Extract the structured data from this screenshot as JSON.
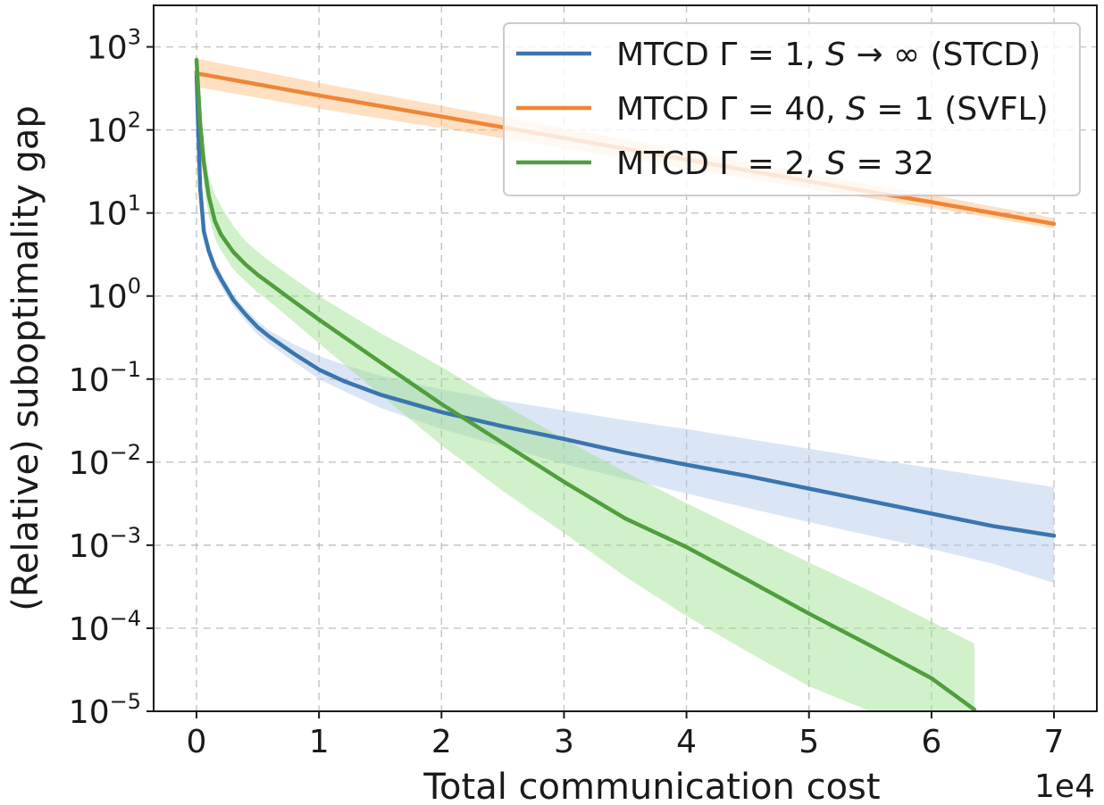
{
  "chart_data": {
    "type": "line",
    "title": "",
    "xlabel": "Total communication cost",
    "ylabel": "(Relative) suboptimality gap",
    "x_offset_label": "1e4",
    "x_scale_factor": 10000,
    "xlim": [
      -0.35,
      7.35
    ],
    "ylim_log10": [
      -5,
      3.5
    ],
    "yscale": "log",
    "grid": true,
    "legend_position": "upper right",
    "x_ticks": [
      {
        "value": 0,
        "label": "0"
      },
      {
        "value": 1,
        "label": "1"
      },
      {
        "value": 2,
        "label": "2"
      },
      {
        "value": 3,
        "label": "3"
      },
      {
        "value": 4,
        "label": "4"
      },
      {
        "value": 5,
        "label": "5"
      },
      {
        "value": 6,
        "label": "6"
      },
      {
        "value": 7,
        "label": "7"
      }
    ],
    "y_ticks": [
      {
        "exp": 3,
        "base": "10",
        "sup": "3"
      },
      {
        "exp": 2,
        "base": "10",
        "sup": "2"
      },
      {
        "exp": 1,
        "base": "10",
        "sup": "1"
      },
      {
        "exp": 0,
        "base": "10",
        "sup": "0"
      },
      {
        "exp": -1,
        "base": "10",
        "sup": "−1"
      },
      {
        "exp": -2,
        "base": "10",
        "sup": "−2"
      },
      {
        "exp": -3,
        "base": "10",
        "sup": "−3"
      },
      {
        "exp": -4,
        "base": "10",
        "sup": "−4"
      },
      {
        "exp": -5,
        "base": "10",
        "sup": "−5"
      }
    ],
    "series": [
      {
        "name": "MTCD Γ = 1, S → ∞ (STCD)",
        "legend_parts": [
          {
            "text": "MTCD Γ = 1, ",
            "italic": false
          },
          {
            "text": "S",
            "italic": true
          },
          {
            "text": " → ∞ (STCD)",
            "italic": false
          }
        ],
        "color": "#3b75af",
        "band_color": "#aec7e8",
        "x": [
          0,
          0.03,
          0.06,
          0.1,
          0.15,
          0.2,
          0.3,
          0.4,
          0.5,
          0.6,
          0.8,
          1.0,
          1.2,
          1.5,
          2.0,
          2.5,
          3.0,
          3.5,
          4.0,
          4.5,
          5.0,
          5.5,
          6.0,
          6.5,
          7.0
        ],
        "y": [
          500,
          20,
          6,
          3.5,
          2.2,
          1.6,
          0.9,
          0.6,
          0.42,
          0.32,
          0.2,
          0.13,
          0.095,
          0.065,
          0.04,
          0.027,
          0.019,
          0.013,
          0.0093,
          0.0068,
          0.0048,
          0.0034,
          0.0024,
          0.0017,
          0.0013
        ],
        "y_upper": [
          700,
          25,
          7.5,
          4.2,
          2.6,
          1.9,
          1.05,
          0.7,
          0.5,
          0.38,
          0.26,
          0.19,
          0.15,
          0.11,
          0.075,
          0.055,
          0.042,
          0.032,
          0.025,
          0.019,
          0.0145,
          0.011,
          0.0085,
          0.0065,
          0.005
        ],
        "y_lower": [
          350,
          16,
          4.8,
          2.9,
          1.8,
          1.3,
          0.75,
          0.5,
          0.34,
          0.26,
          0.16,
          0.1,
          0.072,
          0.045,
          0.025,
          0.0155,
          0.0095,
          0.0063,
          0.0042,
          0.0028,
          0.0019,
          0.0013,
          0.0009,
          0.0006,
          0.00035
        ]
      },
      {
        "name": "MTCD Γ = 40, S = 1 (SVFL)",
        "legend_parts": [
          {
            "text": "MTCD Γ = 40, ",
            "italic": false
          },
          {
            "text": "S",
            "italic": true
          },
          {
            "text": " = 1 (SVFL)",
            "italic": false
          }
        ],
        "color": "#ef8536",
        "band_color": "#ffbb78",
        "x": [
          0,
          1,
          2,
          3,
          4,
          5,
          6,
          7
        ],
        "y": [
          480,
          260,
          145,
          80,
          44,
          24,
          13.5,
          7.4
        ],
        "y_upper": [
          720,
          370,
          195,
          105,
          56,
          30,
          16.5,
          8.7
        ],
        "y_lower": [
          330,
          180,
          105,
          60,
          34,
          19.5,
          11.5,
          6.5
        ]
      },
      {
        "name": "MTCD Γ = 2, S = 32",
        "legend_parts": [
          {
            "text": "MTCD Γ = 2, ",
            "italic": false
          },
          {
            "text": "S",
            "italic": true
          },
          {
            "text": " = 32",
            "italic": false
          }
        ],
        "color": "#519e3e",
        "band_color": "#98df8a",
        "x": [
          0,
          0.03,
          0.06,
          0.1,
          0.15,
          0.2,
          0.3,
          0.4,
          0.5,
          0.6,
          0.8,
          1.0,
          1.5,
          2.0,
          2.5,
          3.0,
          3.5,
          4.0,
          4.5,
          5.0,
          5.5,
          6.0,
          6.35
        ],
        "y": [
          700,
          120,
          40,
          16,
          8,
          5.5,
          3.4,
          2.4,
          1.8,
          1.4,
          0.85,
          0.52,
          0.16,
          0.05,
          0.017,
          0.0058,
          0.0021,
          0.00095,
          0.00038,
          0.00015,
          6.2e-05,
          2.5e-05,
          1.05e-05
        ],
        "y_upper": [
          900,
          160,
          60,
          28,
          17,
          12,
          7,
          4.6,
          3.4,
          2.6,
          1.6,
          1.0,
          0.36,
          0.14,
          0.05,
          0.019,
          0.0076,
          0.0032,
          0.0014,
          0.00062,
          0.00028,
          0.00012,
          6.5e-05
        ],
        "y_lower": [
          500,
          80,
          22,
          9,
          5,
          3.5,
          2.1,
          1.5,
          1.1,
          0.85,
          0.48,
          0.27,
          0.065,
          0.016,
          0.0045,
          0.0014,
          0.00042,
          0.00014,
          5.2e-05,
          2e-05,
          1e-05,
          1e-05,
          1e-05
        ]
      }
    ]
  }
}
